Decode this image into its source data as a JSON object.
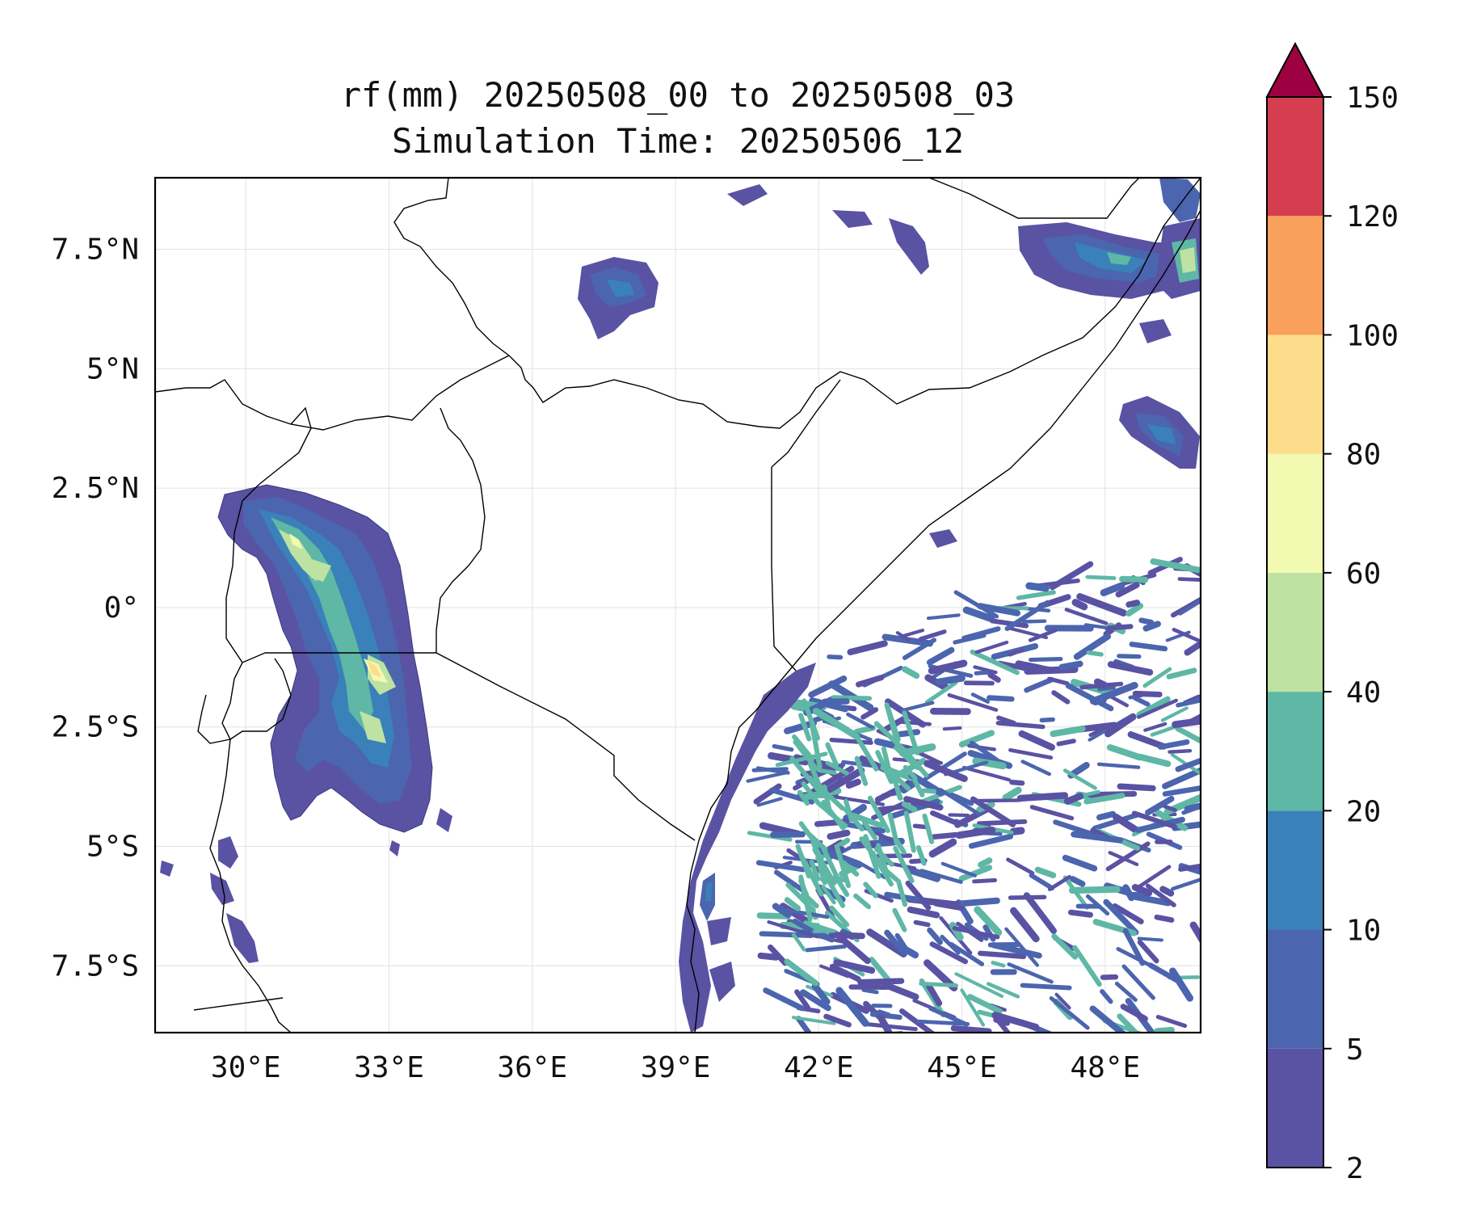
{
  "title": {
    "line1": "rf(mm) 20250508_00 to 20250508_03",
    "line2": "Simulation Time: 20250506_12"
  },
  "map": {
    "lon_range": [
      28.1,
      50.0
    ],
    "lat_range": [
      -8.9,
      9.0
    ],
    "x_ticks": [
      {
        "value": 30,
        "label": "30°E"
      },
      {
        "value": 33,
        "label": "33°E"
      },
      {
        "value": 36,
        "label": "36°E"
      },
      {
        "value": 39,
        "label": "39°E"
      },
      {
        "value": 42,
        "label": "42°E"
      },
      {
        "value": 45,
        "label": "45°E"
      },
      {
        "value": 48,
        "label": "48°E"
      }
    ],
    "y_ticks": [
      {
        "value": 7.5,
        "label": "7.5°N"
      },
      {
        "value": 5,
        "label": "5°N"
      },
      {
        "value": 2.5,
        "label": "2.5°N"
      },
      {
        "value": 0,
        "label": "0°"
      },
      {
        "value": -2.5,
        "label": "2.5°S"
      },
      {
        "value": -5,
        "label": "5°S"
      },
      {
        "value": -7.5,
        "label": "7.5°S"
      }
    ],
    "gridlines": true
  },
  "colorbar": {
    "levels": [
      2,
      5,
      10,
      20,
      40,
      60,
      80,
      100,
      120,
      150
    ],
    "labels": [
      "2",
      "5",
      "10",
      "20",
      "40",
      "60",
      "80",
      "100",
      "120",
      "150"
    ],
    "colors": [
      "#5a52a3",
      "#4b65ae",
      "#3a80b9",
      "#5fb7a6",
      "#bde2a2",
      "#f2f9b1",
      "#fddd8c",
      "#f9a05c",
      "#d53e4f"
    ],
    "extend_color": "#9e0142",
    "extend": "max"
  },
  "colors": {
    "level1": "#5a52a3",
    "level2": "#4b65ae",
    "level3": "#3a80b9",
    "level4": "#5fb7a6",
    "level5": "#bde2a2",
    "level6": "#f2f9b1",
    "level7": "#fddd8c"
  }
}
